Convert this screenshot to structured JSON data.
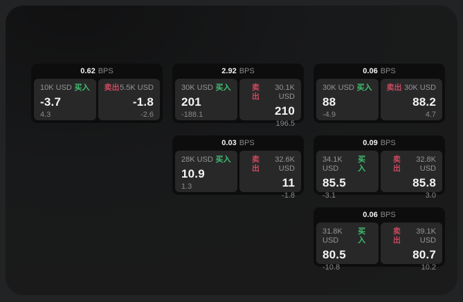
{
  "units": {
    "bps": "BPS"
  },
  "labels": {
    "buy": "买入",
    "sell": "卖出"
  },
  "colors": {
    "backdrop": "#222324",
    "window_bg": "#19191a",
    "card_bg": "#0d0d0e",
    "panel_bg": "#282829",
    "buy_green": "#3fbf6f",
    "sell_red": "#c8495f",
    "text_primary": "#f5f5f5",
    "text_muted": "#8a8a8a"
  },
  "cards": [
    {
      "bps": "0.62",
      "buy": {
        "notional": "10K USD",
        "price": "-3.7",
        "delta": "4.3"
      },
      "sell": {
        "notional": "5.5K USD",
        "price": "-1.8",
        "delta": "-2.6"
      }
    },
    {
      "bps": "2.92",
      "buy": {
        "notional": "30K USD",
        "price": "201",
        "delta": "-188.1"
      },
      "sell": {
        "notional": "30.1K USD",
        "price": "210",
        "delta": "196.5"
      }
    },
    {
      "bps": "0.03",
      "buy": {
        "notional": "28K USD",
        "price": "10.9",
        "delta": "1.3"
      },
      "sell": {
        "notional": "32.6K USD",
        "price": "11",
        "delta": "-1.8"
      }
    },
    {
      "bps": "0.06",
      "buy": {
        "notional": "30K USD",
        "price": "88",
        "delta": "-4.9"
      },
      "sell": {
        "notional": "30K USD",
        "price": "88.2",
        "delta": "4.7"
      }
    },
    {
      "bps": "0.09",
      "buy": {
        "notional": "34.1K USD",
        "price": "85.5",
        "delta": "-3.1"
      },
      "sell": {
        "notional": "32.8K USD",
        "price": "85.8",
        "delta": "3.0"
      }
    },
    {
      "bps": "0.06",
      "buy": {
        "notional": "31.8K USD",
        "price": "80.5",
        "delta": "-10.8"
      },
      "sell": {
        "notional": "39.1K USD",
        "price": "80.7",
        "delta": "10.2"
      }
    }
  ]
}
